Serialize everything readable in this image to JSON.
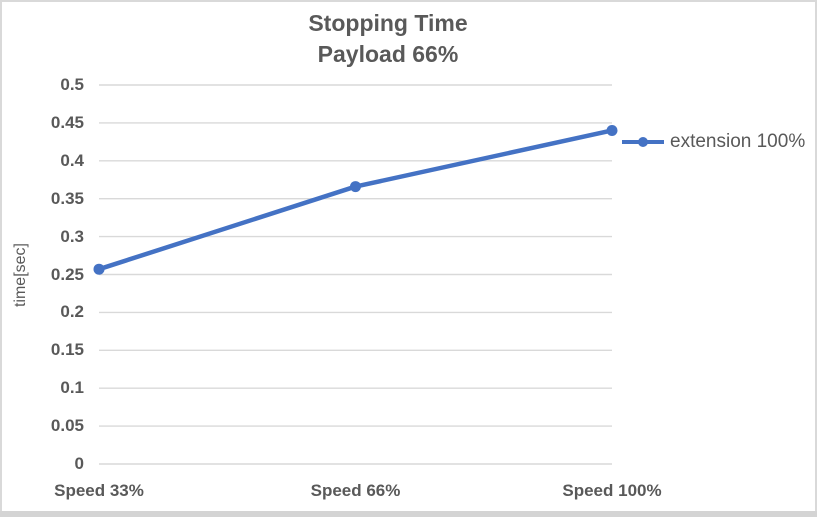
{
  "chart_data": {
    "type": "line",
    "title": "Stopping Time",
    "subtitle": "Payload 66%",
    "categories": [
      "Speed 33%",
      "Speed 66%",
      "Speed 100%"
    ],
    "series": [
      {
        "name": "extension 100%",
        "values": [
          0.257,
          0.366,
          0.44
        ],
        "color": "#4472C4",
        "marker": "circle"
      }
    ],
    "xlabel": "",
    "ylabel": "time[sec]",
    "ylim": [
      0,
      0.5
    ],
    "ytick_step": 0.05,
    "y_tick_labels": [
      "0",
      "0.05",
      "0.1",
      "0.15",
      "0.2",
      "0.25",
      "0.3",
      "0.35",
      "0.4",
      "0.45",
      "0.5"
    ],
    "grid": true,
    "legend_position": "right"
  },
  "colors": {
    "text": "#595959",
    "gridline": "#D9D9D9",
    "chart_border": "#D9D9D9",
    "series_blue": "#4472C4",
    "background": "#FFFFFF"
  }
}
